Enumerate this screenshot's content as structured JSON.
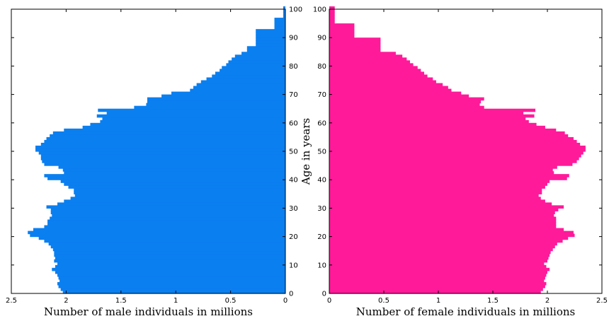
{
  "chart_data": [
    {
      "type": "bar",
      "orientation": "horizontal",
      "xlabel": "Number of male individuals in millions",
      "ylabel": "",
      "xlim": [
        2.5,
        0
      ],
      "ylim": [
        0,
        100
      ],
      "xticks": [
        2.5,
        2,
        1.5,
        1,
        0.5,
        0
      ],
      "yticks": [
        0,
        10,
        20,
        30,
        40,
        50,
        60,
        70,
        80,
        90,
        100
      ],
      "color": "#0a7ff0",
      "series": [
        {
          "age": [
            0,
            1,
            2,
            3,
            4,
            5,
            6,
            7,
            8,
            9,
            10,
            11,
            12,
            13,
            14,
            15,
            16,
            17,
            18,
            19,
            20,
            21,
            22,
            23,
            24,
            25,
            26,
            27,
            28,
            29,
            30,
            31,
            32,
            33,
            34,
            35,
            36,
            37,
            38,
            39,
            40,
            41,
            42,
            43,
            44,
            45,
            46,
            47,
            48,
            49,
            50,
            51,
            52,
            53,
            54,
            55,
            56,
            57,
            58,
            59,
            60,
            61,
            62,
            63,
            64,
            65,
            66,
            67,
            68,
            69,
            70,
            71,
            72,
            73,
            74,
            75,
            76,
            77,
            78,
            79,
            80,
            81,
            82,
            83,
            84,
            85,
            86,
            87,
            88,
            89,
            90,
            91,
            92,
            93,
            94,
            95,
            96,
            97,
            98,
            99,
            100
          ],
          "values": [
            2.03,
            2.05,
            2.07,
            2.08,
            2.06,
            2.07,
            2.08,
            2.1,
            2.13,
            2.1,
            2.08,
            2.11,
            2.1,
            2.11,
            2.11,
            2.12,
            2.14,
            2.16,
            2.2,
            2.25,
            2.33,
            2.35,
            2.3,
            2.2,
            2.17,
            2.17,
            2.15,
            2.13,
            2.14,
            2.14,
            2.18,
            2.08,
            2.02,
            1.96,
            1.92,
            1.93,
            1.93,
            1.98,
            2.02,
            2.05,
            2.17,
            2.2,
            2.02,
            2.03,
            2.07,
            2.2,
            2.22,
            2.23,
            2.23,
            2.25,
            2.28,
            2.28,
            2.23,
            2.2,
            2.18,
            2.15,
            2.12,
            2.02,
            1.85,
            1.78,
            1.69,
            1.67,
            1.72,
            1.63,
            1.71,
            1.38,
            1.27,
            1.26,
            1.26,
            1.13,
            1.04,
            0.87,
            0.84,
            0.81,
            0.77,
            0.72,
            0.67,
            0.64,
            0.6,
            0.58,
            0.54,
            0.52,
            0.49,
            0.46,
            0.4,
            0.35,
            0.35,
            0.27,
            0.27,
            0.27,
            0.27,
            0.27,
            0.27,
            0.1,
            0.1,
            0.1,
            0.1,
            0.02,
            0.02,
            0.02,
            0.02
          ]
        }
      ]
    },
    {
      "type": "bar",
      "orientation": "horizontal",
      "xlabel": "Number of female individuals in millions",
      "ylabel": "Age in years",
      "xlim": [
        0,
        2.5
      ],
      "ylim": [
        0,
        100
      ],
      "xticks": [
        0,
        0.5,
        1,
        1.5,
        2,
        2.5
      ],
      "yticks": [
        0,
        10,
        20,
        30,
        40,
        50,
        60,
        70,
        80,
        90,
        100
      ],
      "color": "#ff1a9a",
      "series": [
        {
          "age": [
            0,
            1,
            2,
            3,
            4,
            5,
            6,
            7,
            8,
            9,
            10,
            11,
            12,
            13,
            14,
            15,
            16,
            17,
            18,
            19,
            20,
            21,
            22,
            23,
            24,
            25,
            26,
            27,
            28,
            29,
            30,
            31,
            32,
            33,
            34,
            35,
            36,
            37,
            38,
            39,
            40,
            41,
            42,
            43,
            44,
            45,
            46,
            47,
            48,
            49,
            50,
            51,
            52,
            53,
            54,
            55,
            56,
            57,
            58,
            59,
            60,
            61,
            62,
            63,
            64,
            65,
            66,
            67,
            68,
            69,
            70,
            71,
            72,
            73,
            74,
            75,
            76,
            77,
            78,
            79,
            80,
            81,
            82,
            83,
            84,
            85,
            86,
            87,
            88,
            89,
            90,
            91,
            92,
            93,
            94,
            95,
            96,
            97,
            98,
            99,
            100
          ],
          "values": [
            1.94,
            1.96,
            1.98,
            1.99,
            1.97,
            1.98,
            1.99,
            2.0,
            2.02,
            1.99,
            1.97,
            2.0,
            2.01,
            2.02,
            2.03,
            2.05,
            2.07,
            2.09,
            2.14,
            2.19,
            2.25,
            2.24,
            2.15,
            2.08,
            2.08,
            2.08,
            2.08,
            2.06,
            2.07,
            2.1,
            2.15,
            2.04,
            1.98,
            1.94,
            1.92,
            1.95,
            1.95,
            1.98,
            2.0,
            2.02,
            2.18,
            2.2,
            2.06,
            2.05,
            2.09,
            2.23,
            2.27,
            2.29,
            2.31,
            2.33,
            2.35,
            2.35,
            2.3,
            2.27,
            2.24,
            2.19,
            2.16,
            2.08,
            1.98,
            1.9,
            1.83,
            1.8,
            1.88,
            1.78,
            1.89,
            1.42,
            1.38,
            1.39,
            1.42,
            1.28,
            1.21,
            1.12,
            1.09,
            1.04,
            0.98,
            0.95,
            0.9,
            0.87,
            0.84,
            0.81,
            0.77,
            0.74,
            0.71,
            0.67,
            0.61,
            0.47,
            0.47,
            0.47,
            0.47,
            0.47,
            0.23,
            0.23,
            0.23,
            0.23,
            0.23,
            0.05,
            0.05,
            0.05,
            0.05,
            0.05,
            0.05
          ]
        }
      ]
    }
  ]
}
